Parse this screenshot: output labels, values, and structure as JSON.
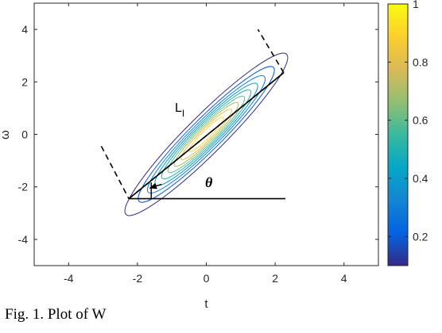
{
  "chart_data": {
    "type": "contour",
    "xlabel": "t",
    "ylabel": "ω",
    "xlim": [
      -5,
      5
    ],
    "ylim": [
      -5,
      5
    ],
    "xticks": [
      -4,
      -2,
      0,
      2,
      4
    ],
    "yticks": [
      -4,
      -2,
      0,
      2,
      4
    ],
    "grid": false,
    "ellipse": {
      "center": [
        0.0,
        0.0
      ],
      "angle_deg": 45,
      "contour_levels": [
        0.1,
        0.2,
        0.3,
        0.4,
        0.5,
        0.6,
        0.7,
        0.8,
        0.9
      ],
      "outer_half_major": 3.3,
      "outer_half_minor": 0.55,
      "colormap": "parula"
    },
    "colorbar": {
      "range": [
        0.1,
        1
      ],
      "ticks": [
        "0.2",
        "0.4",
        "0.6",
        "0.8",
        "1"
      ],
      "tick_values": [
        0.2,
        0.4,
        0.6,
        0.8,
        1.0
      ]
    },
    "annotations": {
      "length_label": "L",
      "length_subscript": "I",
      "angle_label": "θ",
      "major_axis": [
        [
          -2.25,
          -2.45
        ],
        [
          2.25,
          2.35
        ]
      ],
      "horizontal_ref": [
        [
          -2.25,
          -2.45
        ],
        [
          2.3,
          -2.45
        ]
      ],
      "dashed_bracket": [
        [
          -3.05,
          -0.45
        ],
        [
          -2.25,
          -2.45
        ],
        [
          2.25,
          2.35
        ],
        [
          1.5,
          4.0
        ]
      ],
      "angle_arrow_from": [
        -1.3,
        -1.9
      ],
      "angle_arrow_to": [
        -1.65,
        -2.05
      ],
      "angle_arc_x": -1.6
    }
  },
  "caption": "Fig. 1. Plot of W"
}
